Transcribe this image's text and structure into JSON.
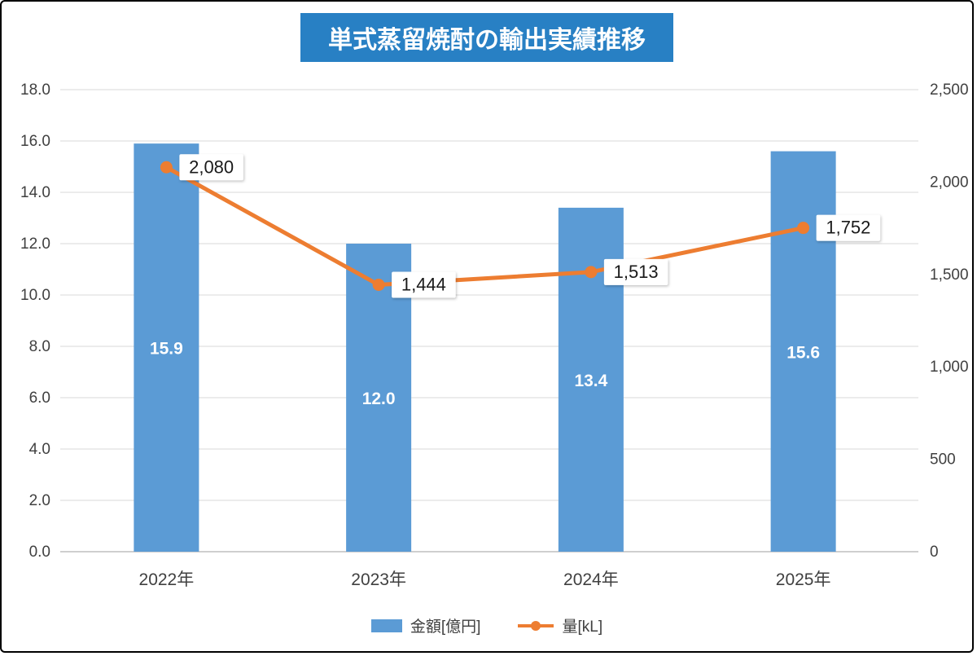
{
  "title": "単式蒸留焼酎の輸出実績推移",
  "colors": {
    "bar": "#5B9BD5",
    "line": "#ED7D31",
    "title_bg": "#2880C4",
    "title_text": "#FFFFFF",
    "gridline": "#D9D9D9",
    "axis_line": "#BFBFBF",
    "axis_text": "#404040",
    "bar_label_text": "#FFFFFF",
    "line_label_text": "#1A1A1A",
    "line_label_bg": "#FFFFFF"
  },
  "chart_data": {
    "type": "combo",
    "title": "単式蒸留焼酎の輸出実績推移",
    "categories": [
      "2022年",
      "2023年",
      "2024年",
      "2025年"
    ],
    "series": [
      {
        "name": "金額[億円]",
        "type": "bar",
        "axis": "left",
        "values": [
          15.9,
          12.0,
          13.4,
          15.6
        ],
        "labels": [
          "15.9",
          "12.0",
          "13.4",
          "15.6"
        ]
      },
      {
        "name": "量[kL]",
        "type": "line",
        "axis": "right",
        "values": [
          2080,
          1444,
          1513,
          1752
        ],
        "labels": [
          "2,080",
          "1,444",
          "1,513",
          "1,752"
        ]
      }
    ],
    "left_axis": {
      "min": 0,
      "max": 18,
      "step": 2,
      "labels": [
        "0.0",
        "2.0",
        "4.0",
        "6.0",
        "8.0",
        "10.0",
        "12.0",
        "14.0",
        "16.0",
        "18.0"
      ]
    },
    "right_axis": {
      "min": 0,
      "max": 2500,
      "step": 500,
      "labels": [
        "0",
        "500",
        "1,000",
        "1,500",
        "2,000",
        "2,500"
      ]
    },
    "grid": true,
    "legend_position": "bottom"
  },
  "legend": {
    "bar_label": "金額[億円]",
    "line_label": "量[kL]"
  }
}
